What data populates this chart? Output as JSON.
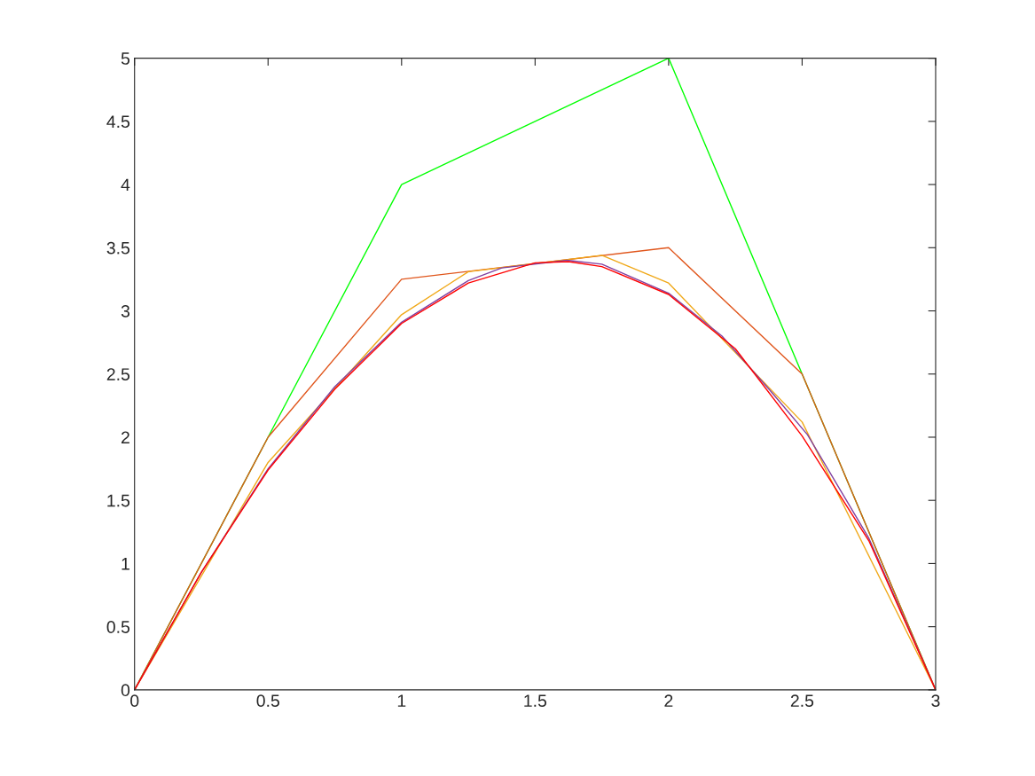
{
  "chart_data": {
    "type": "line",
    "xlim": [
      0,
      3
    ],
    "ylim": [
      0,
      5
    ],
    "xticks": [
      0,
      0.5,
      1,
      1.5,
      2,
      2.5,
      3
    ],
    "yticks": [
      0,
      0.5,
      1,
      1.5,
      2,
      2.5,
      3,
      3.5,
      4,
      4.5,
      5
    ],
    "grid": false,
    "legend": false,
    "marker": "none",
    "line_style": "solid",
    "series": [
      {
        "color": "#00ff00",
        "x": [
          0,
          0.5,
          1,
          2,
          2.5,
          3
        ],
        "values": [
          0,
          2,
          4,
          5,
          2.5,
          0
        ]
      },
      {
        "color": "#e0561c",
        "x": [
          0,
          0.5,
          1,
          2,
          2.5,
          3
        ],
        "values": [
          0,
          2,
          3.25,
          3.5,
          2.5,
          0
        ]
      },
      {
        "color": "#f0a818",
        "x": [
          0,
          0.5,
          1,
          1.25,
          1.75,
          2,
          2.5,
          3
        ],
        "values": [
          0,
          1.8,
          2.97,
          3.31,
          3.44,
          3.22,
          2.12,
          0
        ]
      },
      {
        "color": "#8040a0",
        "x": [
          0,
          0.25,
          0.5,
          0.75,
          1,
          1.25,
          1.375,
          1.62,
          1.75,
          2,
          2.2,
          2.38,
          2.52,
          2.75,
          3
        ],
        "values": [
          0,
          0.93,
          1.75,
          2.4,
          2.91,
          3.24,
          3.34,
          3.4,
          3.37,
          3.14,
          2.8,
          2.37,
          2.02,
          1.2,
          0
        ]
      },
      {
        "color": "#ff0000",
        "x": [
          0,
          0.25,
          0.5,
          0.75,
          1,
          1.25,
          1.5,
          1.625,
          1.75,
          2,
          2.25,
          2.5,
          2.75,
          3
        ],
        "values": [
          0,
          0.93,
          1.74,
          2.38,
          2.9,
          3.22,
          3.38,
          3.39,
          3.35,
          3.13,
          2.7,
          2.01,
          1.18,
          0
        ]
      }
    ]
  }
}
